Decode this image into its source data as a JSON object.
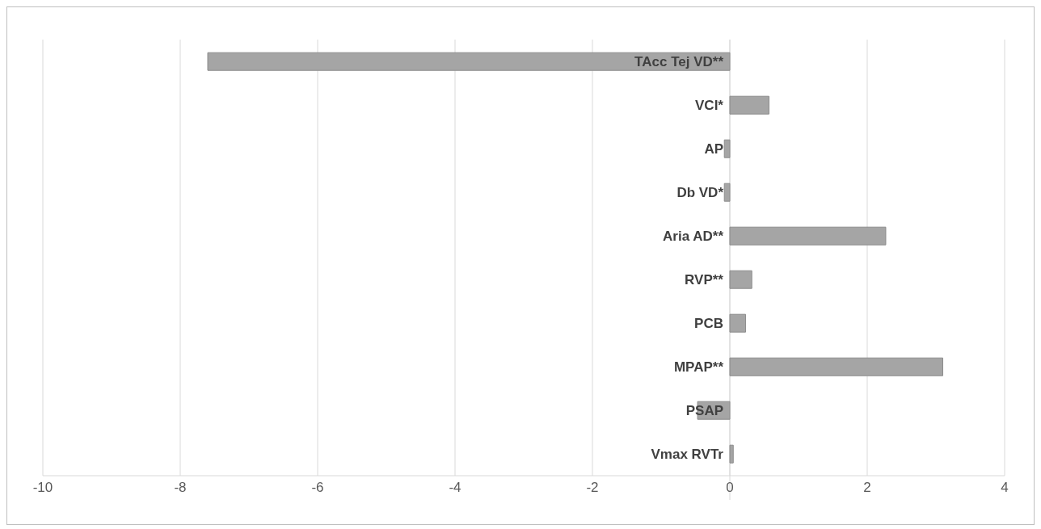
{
  "chart_data": {
    "type": "bar",
    "orientation": "horizontal",
    "categories": [
      "TAcc Tej VD**",
      "VCI*",
      "AP",
      "Db VD*",
      "Aria AD**",
      "RVP**",
      "PCB",
      "MPAP**",
      "PSAP",
      "Vmax RVTr"
    ],
    "values": [
      -7.6,
      0.57,
      -0.08,
      -0.08,
      2.27,
      0.32,
      0.23,
      3.1,
      -0.47,
      0.05
    ],
    "color": "#a5a5a5",
    "xlim": [
      -10,
      4
    ],
    "xticks": [
      -10,
      -8,
      -6,
      -4,
      -2,
      0,
      2,
      4
    ],
    "grid": "x"
  }
}
